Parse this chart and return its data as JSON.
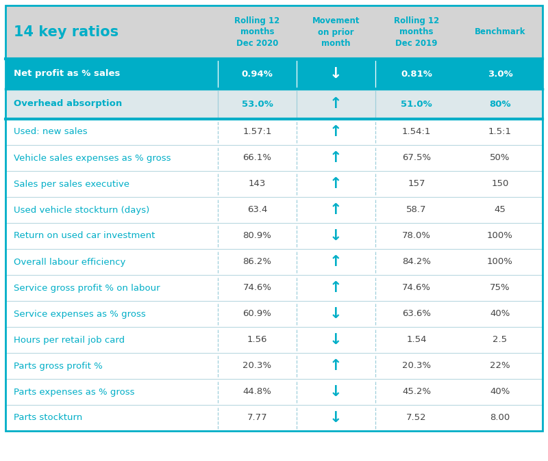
{
  "title": "14 key ratios",
  "col_headers": [
    "Rolling 12\nmonths\nDec 2020",
    "Movement\non prior\nmonth",
    "Rolling 12\nmonths\nDec 2019",
    "Benchmark"
  ],
  "header_bg": "#d4d4d4",
  "teal": "#00aec7",
  "light_gray": "#dde8eb",
  "white": "#ffffff",
  "outer_border_color": "#00aec7",
  "rows": [
    {
      "label": "Net profit as % sales",
      "v1": "0.94%",
      "arrow": "down",
      "v2": "0.81%",
      "bench": "3.0%",
      "style": "kpi_teal",
      "bg": "#00aec7"
    },
    {
      "label": "Overhead absorption",
      "v1": "53.0%",
      "arrow": "up",
      "v2": "51.0%",
      "bench": "80%",
      "style": "kpi_gray",
      "bg": "#dde8eb"
    },
    {
      "label": "Used: new sales",
      "v1": "1.57:1",
      "arrow": "up",
      "v2": "1.54:1",
      "bench": "1.5:1",
      "style": "normal",
      "bg": "#ffffff"
    },
    {
      "label": "Vehicle sales expenses as % gross",
      "v1": "66.1%",
      "arrow": "up",
      "v2": "67.5%",
      "bench": "50%",
      "style": "normal",
      "bg": "#ffffff"
    },
    {
      "label": "Sales per sales executive",
      "v1": "143",
      "arrow": "up",
      "v2": "157",
      "bench": "150",
      "style": "normal",
      "bg": "#ffffff"
    },
    {
      "label": "Used vehicle stockturn (days)",
      "v1": "63.4",
      "arrow": "up",
      "v2": "58.7",
      "bench": "45",
      "style": "normal",
      "bg": "#ffffff"
    },
    {
      "label": "Return on used car investment",
      "v1": "80.9%",
      "arrow": "down",
      "v2": "78.0%",
      "bench": "100%",
      "style": "normal",
      "bg": "#ffffff"
    },
    {
      "label": "Overall labour efficiency",
      "v1": "86.2%",
      "arrow": "up",
      "v2": "84.2%",
      "bench": "100%",
      "style": "normal",
      "bg": "#ffffff"
    },
    {
      "label": "Service gross profit % on labour",
      "v1": "74.6%",
      "arrow": "up",
      "v2": "74.6%",
      "bench": "75%",
      "style": "normal",
      "bg": "#ffffff"
    },
    {
      "label": "Service expenses as % gross",
      "v1": "60.9%",
      "arrow": "down",
      "v2": "63.6%",
      "bench": "40%",
      "style": "normal",
      "bg": "#ffffff"
    },
    {
      "label": "Hours per retail job card",
      "v1": "1.56",
      "arrow": "down",
      "v2": "1.54",
      "bench": "2.5",
      "style": "normal",
      "bg": "#ffffff"
    },
    {
      "label": "Parts gross profit %",
      "v1": "20.3%",
      "arrow": "up",
      "v2": "20.3%",
      "bench": "22%",
      "style": "normal",
      "bg": "#ffffff"
    },
    {
      "label": "Parts expenses as % gross",
      "v1": "44.8%",
      "arrow": "down",
      "v2": "45.2%",
      "bench": "40%",
      "style": "normal",
      "bg": "#ffffff"
    },
    {
      "label": "Parts stockturn",
      "v1": "7.77",
      "arrow": "down",
      "v2": "7.52",
      "bench": "8.00",
      "style": "normal",
      "bg": "#ffffff"
    }
  ]
}
